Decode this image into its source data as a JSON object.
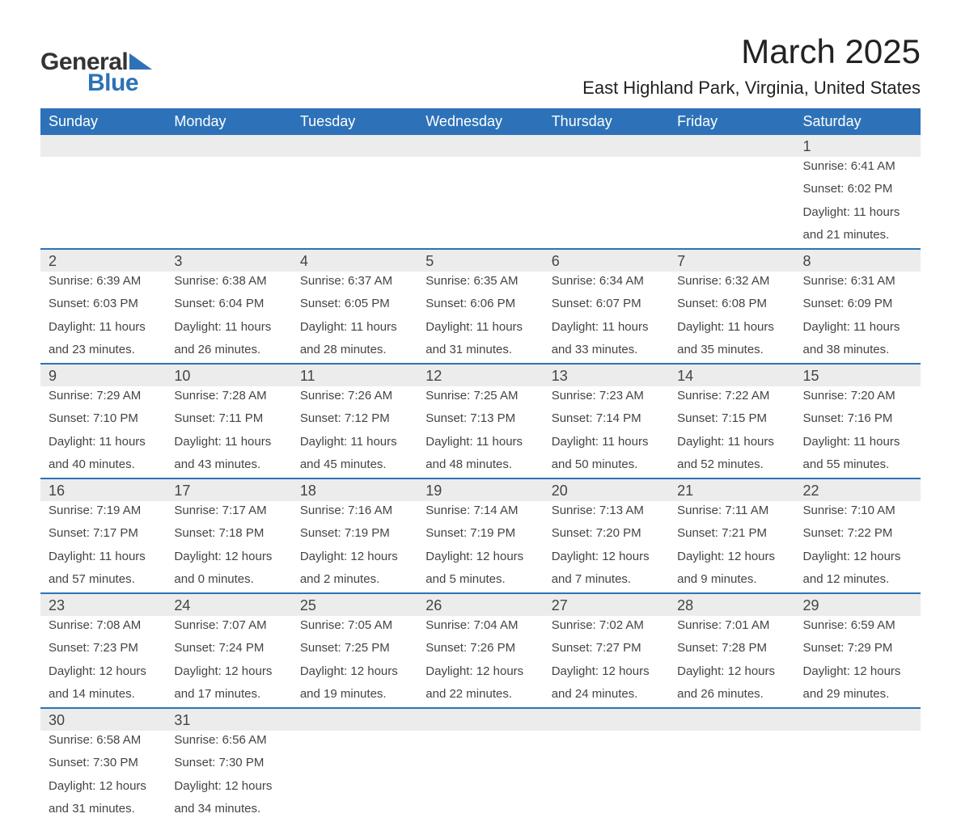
{
  "brand": {
    "word1": "General",
    "word2": "Blue"
  },
  "title": "March 2025",
  "location": "East Highland Park, Virginia, United States",
  "colors": {
    "header_bg": "#2d72b8",
    "header_text": "#ffffff",
    "daynum_bg": "#ececec",
    "border": "#2d72b8",
    "text": "#444444",
    "brand_dark": "#333333",
    "brand_blue": "#2d72b8"
  },
  "typography": {
    "title_fontsize": 42,
    "location_fontsize": 22,
    "dayhead_fontsize": 18,
    "daynum_fontsize": 18,
    "detail_fontsize": 15
  },
  "day_headers": [
    "Sunday",
    "Monday",
    "Tuesday",
    "Wednesday",
    "Thursday",
    "Friday",
    "Saturday"
  ],
  "weeks": [
    {
      "nums": [
        "",
        "",
        "",
        "",
        "",
        "",
        "1"
      ],
      "sun": [
        "",
        "",
        "",
        "",
        "",
        "",
        "Sunrise: 6:41 AM"
      ],
      "set": [
        "",
        "",
        "",
        "",
        "",
        "",
        "Sunset: 6:02 PM"
      ],
      "dl1": [
        "",
        "",
        "",
        "",
        "",
        "",
        "Daylight: 11 hours"
      ],
      "dl2": [
        "",
        "",
        "",
        "",
        "",
        "",
        "and 21 minutes."
      ]
    },
    {
      "nums": [
        "2",
        "3",
        "4",
        "5",
        "6",
        "7",
        "8"
      ],
      "sun": [
        "Sunrise: 6:39 AM",
        "Sunrise: 6:38 AM",
        "Sunrise: 6:37 AM",
        "Sunrise: 6:35 AM",
        "Sunrise: 6:34 AM",
        "Sunrise: 6:32 AM",
        "Sunrise: 6:31 AM"
      ],
      "set": [
        "Sunset: 6:03 PM",
        "Sunset: 6:04 PM",
        "Sunset: 6:05 PM",
        "Sunset: 6:06 PM",
        "Sunset: 6:07 PM",
        "Sunset: 6:08 PM",
        "Sunset: 6:09 PM"
      ],
      "dl1": [
        "Daylight: 11 hours",
        "Daylight: 11 hours",
        "Daylight: 11 hours",
        "Daylight: 11 hours",
        "Daylight: 11 hours",
        "Daylight: 11 hours",
        "Daylight: 11 hours"
      ],
      "dl2": [
        "and 23 minutes.",
        "and 26 minutes.",
        "and 28 minutes.",
        "and 31 minutes.",
        "and 33 minutes.",
        "and 35 minutes.",
        "and 38 minutes."
      ]
    },
    {
      "nums": [
        "9",
        "10",
        "11",
        "12",
        "13",
        "14",
        "15"
      ],
      "sun": [
        "Sunrise: 7:29 AM",
        "Sunrise: 7:28 AM",
        "Sunrise: 7:26 AM",
        "Sunrise: 7:25 AM",
        "Sunrise: 7:23 AM",
        "Sunrise: 7:22 AM",
        "Sunrise: 7:20 AM"
      ],
      "set": [
        "Sunset: 7:10 PM",
        "Sunset: 7:11 PM",
        "Sunset: 7:12 PM",
        "Sunset: 7:13 PM",
        "Sunset: 7:14 PM",
        "Sunset: 7:15 PM",
        "Sunset: 7:16 PM"
      ],
      "dl1": [
        "Daylight: 11 hours",
        "Daylight: 11 hours",
        "Daylight: 11 hours",
        "Daylight: 11 hours",
        "Daylight: 11 hours",
        "Daylight: 11 hours",
        "Daylight: 11 hours"
      ],
      "dl2": [
        "and 40 minutes.",
        "and 43 minutes.",
        "and 45 minutes.",
        "and 48 minutes.",
        "and 50 minutes.",
        "and 52 minutes.",
        "and 55 minutes."
      ]
    },
    {
      "nums": [
        "16",
        "17",
        "18",
        "19",
        "20",
        "21",
        "22"
      ],
      "sun": [
        "Sunrise: 7:19 AM",
        "Sunrise: 7:17 AM",
        "Sunrise: 7:16 AM",
        "Sunrise: 7:14 AM",
        "Sunrise: 7:13 AM",
        "Sunrise: 7:11 AM",
        "Sunrise: 7:10 AM"
      ],
      "set": [
        "Sunset: 7:17 PM",
        "Sunset: 7:18 PM",
        "Sunset: 7:19 PM",
        "Sunset: 7:19 PM",
        "Sunset: 7:20 PM",
        "Sunset: 7:21 PM",
        "Sunset: 7:22 PM"
      ],
      "dl1": [
        "Daylight: 11 hours",
        "Daylight: 12 hours",
        "Daylight: 12 hours",
        "Daylight: 12 hours",
        "Daylight: 12 hours",
        "Daylight: 12 hours",
        "Daylight: 12 hours"
      ],
      "dl2": [
        "and 57 minutes.",
        "and 0 minutes.",
        "and 2 minutes.",
        "and 5 minutes.",
        "and 7 minutes.",
        "and 9 minutes.",
        "and 12 minutes."
      ]
    },
    {
      "nums": [
        "23",
        "24",
        "25",
        "26",
        "27",
        "28",
        "29"
      ],
      "sun": [
        "Sunrise: 7:08 AM",
        "Sunrise: 7:07 AM",
        "Sunrise: 7:05 AM",
        "Sunrise: 7:04 AM",
        "Sunrise: 7:02 AM",
        "Sunrise: 7:01 AM",
        "Sunrise: 6:59 AM"
      ],
      "set": [
        "Sunset: 7:23 PM",
        "Sunset: 7:24 PM",
        "Sunset: 7:25 PM",
        "Sunset: 7:26 PM",
        "Sunset: 7:27 PM",
        "Sunset: 7:28 PM",
        "Sunset: 7:29 PM"
      ],
      "dl1": [
        "Daylight: 12 hours",
        "Daylight: 12 hours",
        "Daylight: 12 hours",
        "Daylight: 12 hours",
        "Daylight: 12 hours",
        "Daylight: 12 hours",
        "Daylight: 12 hours"
      ],
      "dl2": [
        "and 14 minutes.",
        "and 17 minutes.",
        "and 19 minutes.",
        "and 22 minutes.",
        "and 24 minutes.",
        "and 26 minutes.",
        "and 29 minutes."
      ]
    },
    {
      "nums": [
        "30",
        "31",
        "",
        "",
        "",
        "",
        ""
      ],
      "sun": [
        "Sunrise: 6:58 AM",
        "Sunrise: 6:56 AM",
        "",
        "",
        "",
        "",
        ""
      ],
      "set": [
        "Sunset: 7:30 PM",
        "Sunset: 7:30 PM",
        "",
        "",
        "",
        "",
        ""
      ],
      "dl1": [
        "Daylight: 12 hours",
        "Daylight: 12 hours",
        "",
        "",
        "",
        "",
        ""
      ],
      "dl2": [
        "and 31 minutes.",
        "and 34 minutes.",
        "",
        "",
        "",
        "",
        ""
      ]
    }
  ]
}
